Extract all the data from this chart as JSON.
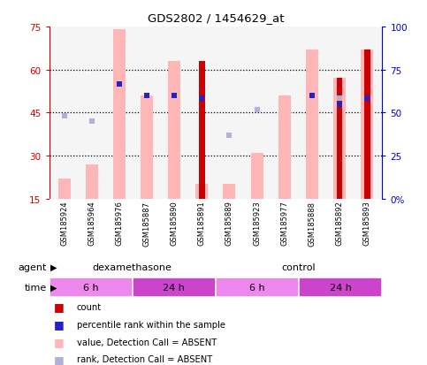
{
  "title": "GDS2802 / 1454629_at",
  "samples": [
    "GSM185924",
    "GSM185964",
    "GSM185976",
    "GSM185887",
    "GSM185890",
    "GSM185891",
    "GSM185889",
    "GSM185923",
    "GSM185977",
    "GSM185888",
    "GSM185892",
    "GSM185893"
  ],
  "pink_bar_tops": [
    22,
    27,
    74,
    51,
    63,
    20,
    20,
    31,
    51,
    67,
    57,
    67
  ],
  "red_bar_tops": [
    0,
    0,
    0,
    0,
    0,
    63,
    0,
    0,
    0,
    0,
    57,
    67
  ],
  "light_blue_sq_y": [
    44,
    42,
    null,
    null,
    null,
    50,
    37,
    46,
    null,
    null,
    50,
    50
  ],
  "dark_blue_sq_y": [
    null,
    null,
    55,
    51,
    51,
    50,
    null,
    null,
    null,
    51,
    48,
    50
  ],
  "ylim_left": [
    15,
    75
  ],
  "ylim_right": [
    0,
    100
  ],
  "left_yticks": [
    15,
    30,
    45,
    60,
    75
  ],
  "right_yticks": [
    0,
    25,
    50,
    75,
    100
  ],
  "left_tick_labels": [
    "15",
    "30",
    "45",
    "60",
    "75"
  ],
  "right_tick_labels": [
    "0%",
    "25",
    "50",
    "75",
    "100"
  ],
  "pink_color": "#ffb6b6",
  "red_color": "#cc0000",
  "light_blue_color": "#b0b0d8",
  "dark_blue_color": "#2222cc",
  "plot_bg_color": "#f5f5f5",
  "left_tick_color": "#cc0000",
  "right_tick_color": "#0000cc",
  "agent_green": "#77dd77",
  "time_light_pink": "#ee88ee",
  "time_dark_pink": "#cc44cc",
  "sample_box_color": "#cccccc",
  "legend_labels": [
    "count",
    "percentile rank within the sample",
    "value, Detection Call = ABSENT",
    "rank, Detection Call = ABSENT"
  ],
  "legend_colors": [
    "#cc0000",
    "#2222cc",
    "#ffb6b6",
    "#b0b0d8"
  ]
}
